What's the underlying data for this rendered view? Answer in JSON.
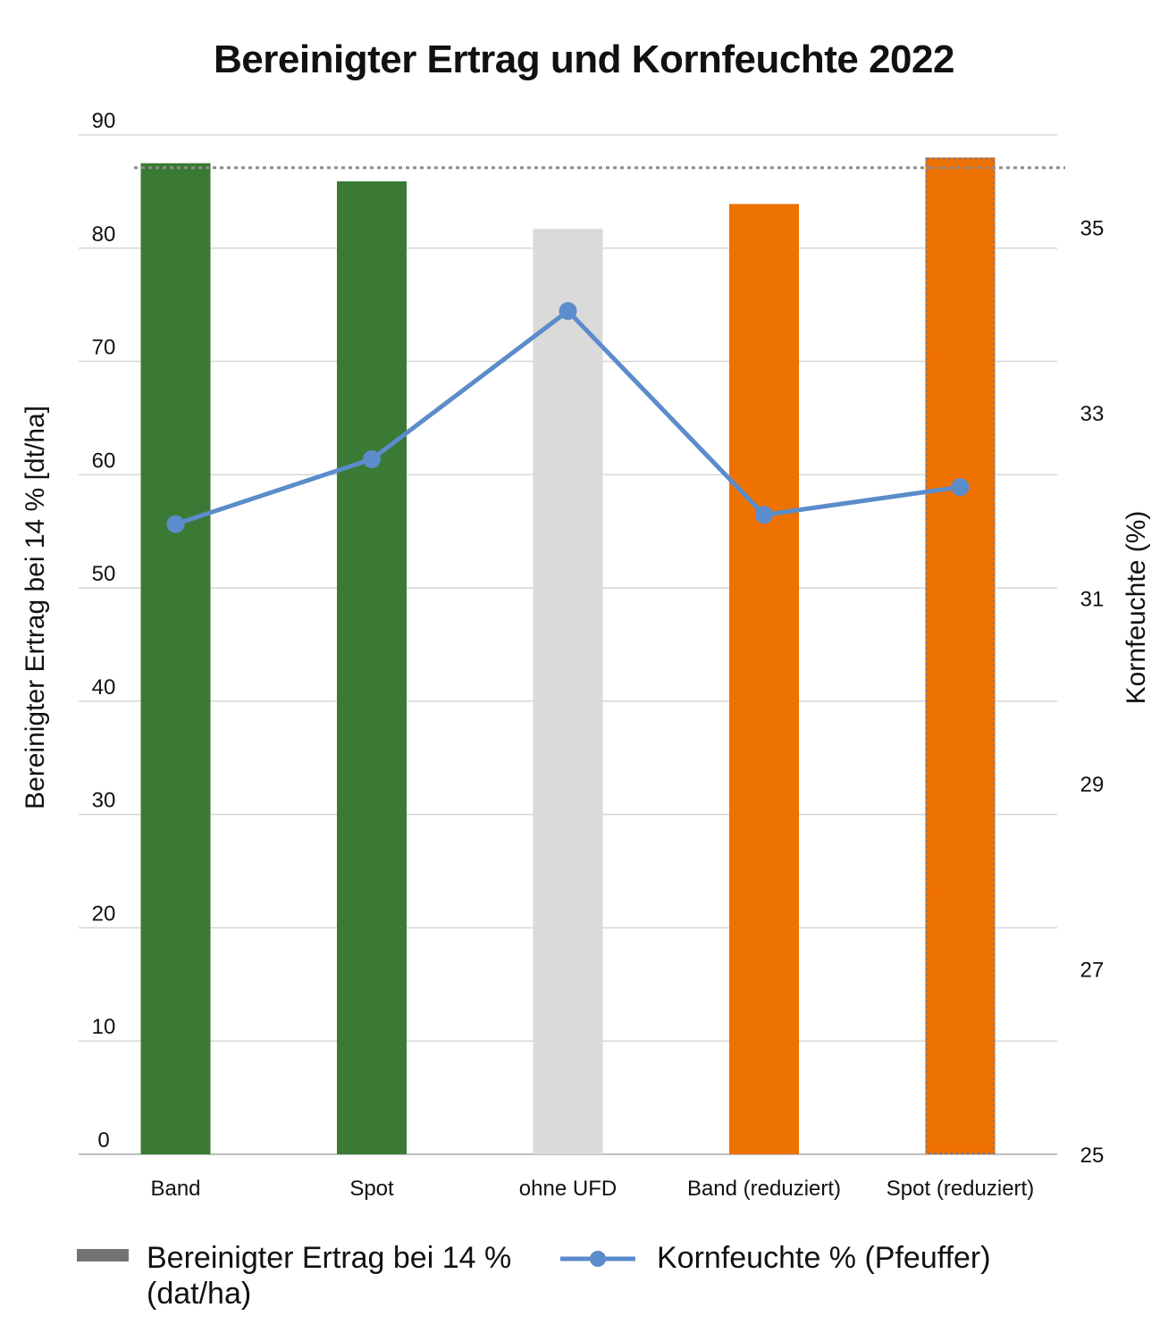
{
  "chart_data": {
    "type": "bar",
    "title": "Bereinigter Ertrag und Kornfeuchte 2022",
    "categories": [
      "Band",
      "Spot",
      "ohne UFD",
      "Band (reduziert)",
      "Spot (reduziert)"
    ],
    "bar_series": {
      "name": "Bereinigter Ertrag bei 14 % (dat/ha)",
      "values": [
        87.5,
        85.9,
        81.7,
        83.9,
        88.0
      ],
      "colors": [
        "#3a7a34",
        "#3a7a34",
        "#d9dad9",
        "#ee7202",
        "#ee7202"
      ]
    },
    "line_series": {
      "name": "Kornfeuchte % (Pfeuffer)",
      "values": [
        31.8,
        32.5,
        34.1,
        31.9,
        32.2
      ],
      "color": "#5b8ccb",
      "axis": "right"
    },
    "reference_line": {
      "value": 87.1,
      "style": "dotted",
      "color": "#8c8c8c"
    },
    "left_axis": {
      "label": "Bereinigter Ertrag bei 14 % [dt/ha]",
      "ylim": [
        0,
        90
      ],
      "ticks": [
        0,
        10,
        20,
        30,
        40,
        50,
        60,
        70,
        80,
        90
      ]
    },
    "right_axis": {
      "label": "Kornfeuchte (%)",
      "ylim": [
        25,
        36
      ],
      "ticks": [
        25,
        27,
        29,
        31,
        33,
        35
      ]
    },
    "grid": true,
    "legend_position": "bottom"
  },
  "legend": {
    "bar_label": "Bereinigter Ertrag bei 14 % (dat/ha)",
    "line_label": "Kornfeuchte % (Pfeuffer)"
  }
}
